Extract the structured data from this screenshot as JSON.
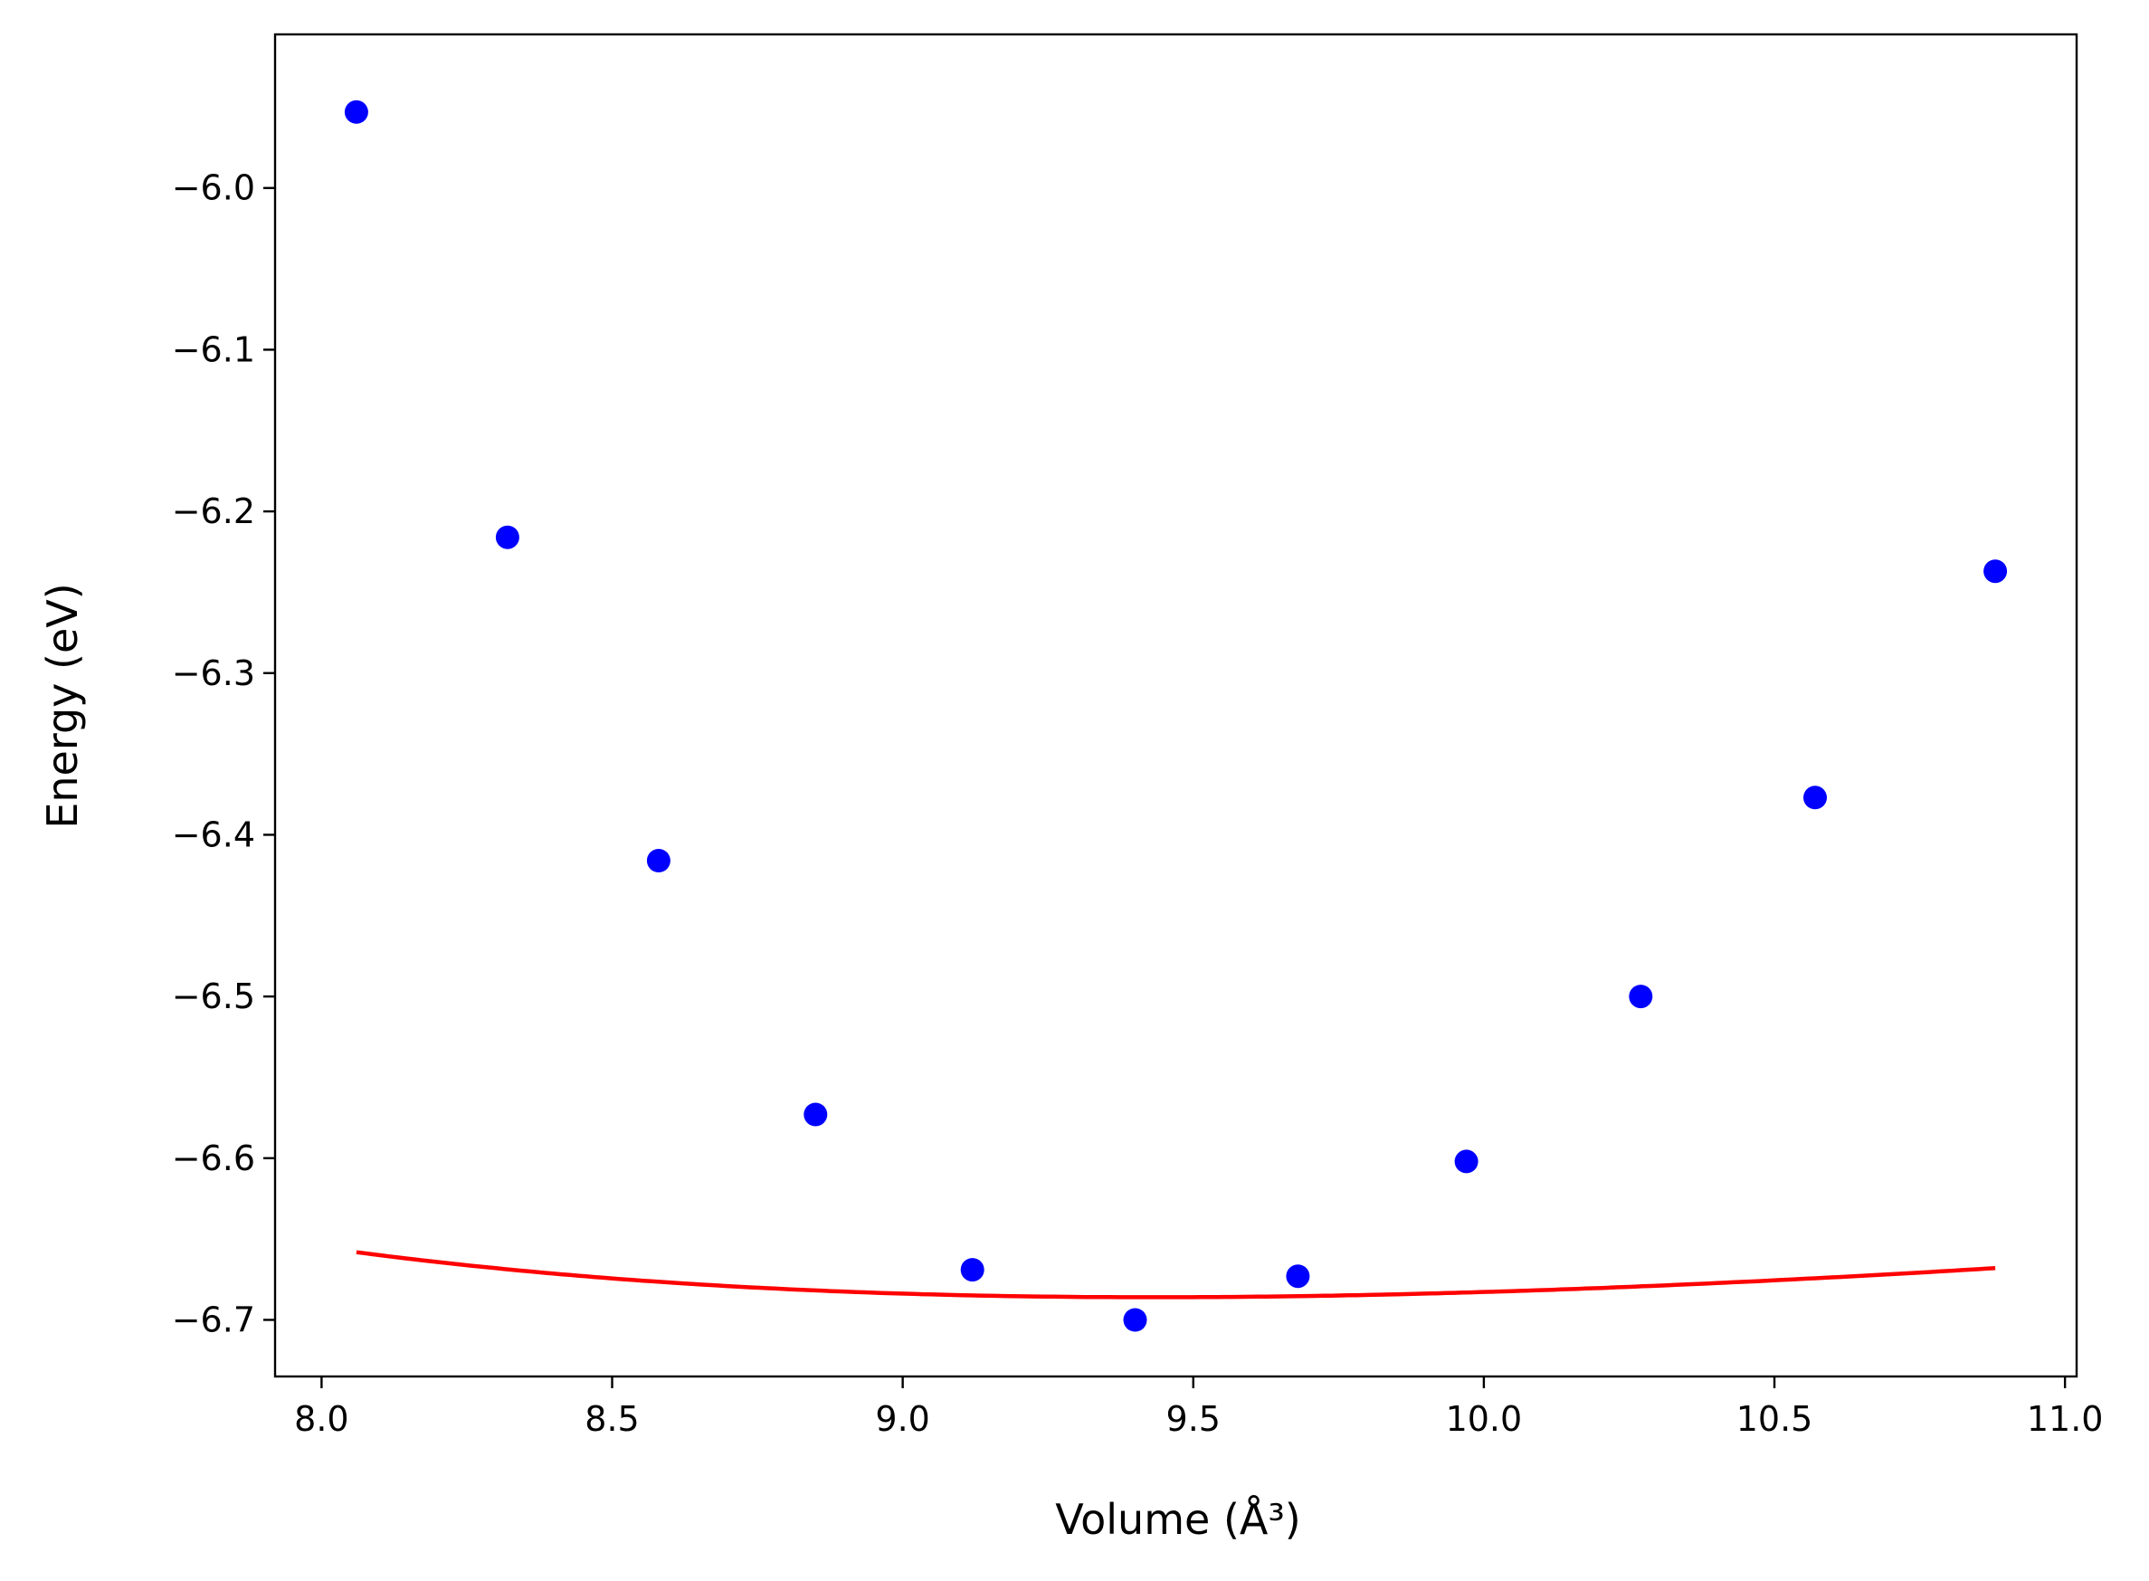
{
  "chart_data": {
    "type": "scatter",
    "title": "",
    "xlabel": "Volume (Å³)",
    "ylabel": "Energy (eV)",
    "xlim": [
      7.92,
      11.02
    ],
    "ylim": [
      -6.735,
      -5.905
    ],
    "xticks": [
      8.0,
      8.5,
      9.0,
      9.5,
      10.0,
      10.5,
      11.0
    ],
    "xtick_labels": [
      "8.0",
      "8.5",
      "9.0",
      "9.5",
      "10.0",
      "10.5",
      "11.0"
    ],
    "yticks": [
      -6.0,
      -6.1,
      -6.2,
      -6.3,
      -6.4,
      -6.5,
      -6.6,
      -6.7
    ],
    "ytick_labels": [
      "−6.0",
      "−6.1",
      "−6.2",
      "−6.3",
      "−6.4",
      "−6.5",
      "−6.6",
      "−6.7"
    ],
    "grid": false,
    "legend": "none",
    "series": [
      {
        "kind": "scatter",
        "color": "#0000ff",
        "x": [
          8.06,
          8.32,
          8.58,
          8.85,
          9.12,
          9.4,
          9.68,
          9.97,
          10.27,
          10.57,
          10.88
        ],
        "y": [
          -5.953,
          -6.216,
          -6.416,
          -6.573,
          -6.669,
          -6.7,
          -6.673,
          -6.602,
          -6.5,
          -6.377,
          -6.237
        ]
      },
      {
        "kind": "line",
        "color": "#ff0000",
        "fit": {
          "E0": -6.686,
          "V0": 9.43,
          "B0": 0.21,
          "B0p": 4.5
        },
        "xrange": [
          8.06,
          10.88
        ]
      }
    ]
  }
}
